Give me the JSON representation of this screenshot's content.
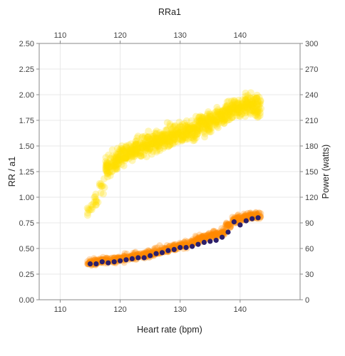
{
  "chart_data": {
    "type": "scatter",
    "title": "RRa1",
    "xlabel": "Heart rate (bpm)",
    "ylabel": "RR / a1",
    "y2label": "Power (watts)",
    "xlim": [
      106.5,
      150
    ],
    "ylim": [
      0,
      2.5
    ],
    "y2lim": [
      0,
      300
    ],
    "x_ticks": [
      "110",
      "120",
      "130",
      "140"
    ],
    "x_tick_values": [
      110,
      120,
      130,
      140
    ],
    "x_top_ticks": [
      "110",
      "120",
      "130",
      "140"
    ],
    "y_ticks": [
      "0.00",
      "0.25",
      "0.50",
      "0.75",
      "1.00",
      "1.25",
      "1.50",
      "1.75",
      "2.00",
      "2.25",
      "2.50"
    ],
    "y_tick_values": [
      0,
      0.25,
      0.5,
      0.75,
      1.0,
      1.25,
      1.5,
      1.75,
      2.0,
      2.25,
      2.5
    ],
    "y2_ticks": [
      "0",
      "30",
      "60",
      "90",
      "120",
      "150",
      "180",
      "210",
      "240",
      "270",
      "300"
    ],
    "y2_tick_values": [
      0,
      30,
      60,
      90,
      120,
      150,
      180,
      210,
      240,
      270,
      300
    ],
    "grid": true,
    "colors": {
      "power": "#ffe000",
      "rr": "#ff8a00",
      "a1": "#2c1f6b",
      "grid": "#e8e8e8",
      "axis": "#888888"
    },
    "series": [
      {
        "axis": "right",
        "color": "#ffe000",
        "style": "scatter-cloud",
        "centers": [
          {
            "x": 115,
            "y": 105
          },
          {
            "x": 116,
            "y": 118
          },
          {
            "x": 117,
            "y": 135
          },
          {
            "x": 118,
            "y": 155
          },
          {
            "x": 119,
            "y": 162
          },
          {
            "x": 120,
            "y": 167
          },
          {
            "x": 121,
            "y": 170
          },
          {
            "x": 122,
            "y": 174
          },
          {
            "x": 123,
            "y": 177
          },
          {
            "x": 124,
            "y": 180
          },
          {
            "x": 125,
            "y": 183
          },
          {
            "x": 126,
            "y": 185
          },
          {
            "x": 127,
            "y": 187
          },
          {
            "x": 128,
            "y": 190
          },
          {
            "x": 129,
            "y": 193
          },
          {
            "x": 130,
            "y": 195
          },
          {
            "x": 131,
            "y": 197
          },
          {
            "x": 132,
            "y": 200
          },
          {
            "x": 133,
            "y": 203
          },
          {
            "x": 134,
            "y": 206
          },
          {
            "x": 135,
            "y": 209
          },
          {
            "x": 136,
            "y": 212
          },
          {
            "x": 137,
            "y": 216
          },
          {
            "x": 138,
            "y": 220
          },
          {
            "x": 139,
            "y": 223
          },
          {
            "x": 140,
            "y": 225
          },
          {
            "x": 141,
            "y": 228
          },
          {
            "x": 142,
            "y": 228
          },
          {
            "x": 143,
            "y": 226
          }
        ]
      },
      {
        "axis": "left",
        "color": "#ff8a00",
        "style": "scatter-cloud",
        "centers": [
          {
            "x": 115,
            "y": 0.36
          },
          {
            "x": 116,
            "y": 0.37
          },
          {
            "x": 117,
            "y": 0.38
          },
          {
            "x": 118,
            "y": 0.39
          },
          {
            "x": 119,
            "y": 0.39
          },
          {
            "x": 120,
            "y": 0.4
          },
          {
            "x": 121,
            "y": 0.41
          },
          {
            "x": 122,
            "y": 0.42
          },
          {
            "x": 123,
            "y": 0.43
          },
          {
            "x": 124,
            "y": 0.44
          },
          {
            "x": 125,
            "y": 0.45
          },
          {
            "x": 126,
            "y": 0.47
          },
          {
            "x": 127,
            "y": 0.48
          },
          {
            "x": 128,
            "y": 0.5
          },
          {
            "x": 129,
            "y": 0.51
          },
          {
            "x": 130,
            "y": 0.53
          },
          {
            "x": 131,
            "y": 0.54
          },
          {
            "x": 132,
            "y": 0.56
          },
          {
            "x": 133,
            "y": 0.58
          },
          {
            "x": 134,
            "y": 0.6
          },
          {
            "x": 135,
            "y": 0.62
          },
          {
            "x": 136,
            "y": 0.64
          },
          {
            "x": 137,
            "y": 0.66
          },
          {
            "x": 138,
            "y": 0.72
          },
          {
            "x": 139,
            "y": 0.78
          },
          {
            "x": 140,
            "y": 0.79
          },
          {
            "x": 141,
            "y": 0.81
          },
          {
            "x": 142,
            "y": 0.82
          },
          {
            "x": 143,
            "y": 0.82
          }
        ]
      },
      {
        "axis": "left",
        "color": "#2c1f6b",
        "style": "dots",
        "points": [
          {
            "x": 115,
            "y": 0.35
          },
          {
            "x": 116,
            "y": 0.35
          },
          {
            "x": 117,
            "y": 0.37
          },
          {
            "x": 118,
            "y": 0.36
          },
          {
            "x": 119,
            "y": 0.37
          },
          {
            "x": 120,
            "y": 0.38
          },
          {
            "x": 121,
            "y": 0.39
          },
          {
            "x": 122,
            "y": 0.4
          },
          {
            "x": 123,
            "y": 0.41
          },
          {
            "x": 124,
            "y": 0.41
          },
          {
            "x": 125,
            "y": 0.43
          },
          {
            "x": 126,
            "y": 0.45
          },
          {
            "x": 127,
            "y": 0.46
          },
          {
            "x": 128,
            "y": 0.48
          },
          {
            "x": 129,
            "y": 0.49
          },
          {
            "x": 130,
            "y": 0.51
          },
          {
            "x": 131,
            "y": 0.51
          },
          {
            "x": 132,
            "y": 0.52
          },
          {
            "x": 133,
            "y": 0.54
          },
          {
            "x": 134,
            "y": 0.56
          },
          {
            "x": 135,
            "y": 0.57
          },
          {
            "x": 136,
            "y": 0.58
          },
          {
            "x": 137,
            "y": 0.61
          },
          {
            "x": 138,
            "y": 0.66
          },
          {
            "x": 139,
            "y": 0.76
          },
          {
            "x": 140,
            "y": 0.73
          },
          {
            "x": 141,
            "y": 0.77
          },
          {
            "x": 142,
            "y": 0.79
          },
          {
            "x": 143,
            "y": 0.8
          }
        ]
      }
    ]
  }
}
